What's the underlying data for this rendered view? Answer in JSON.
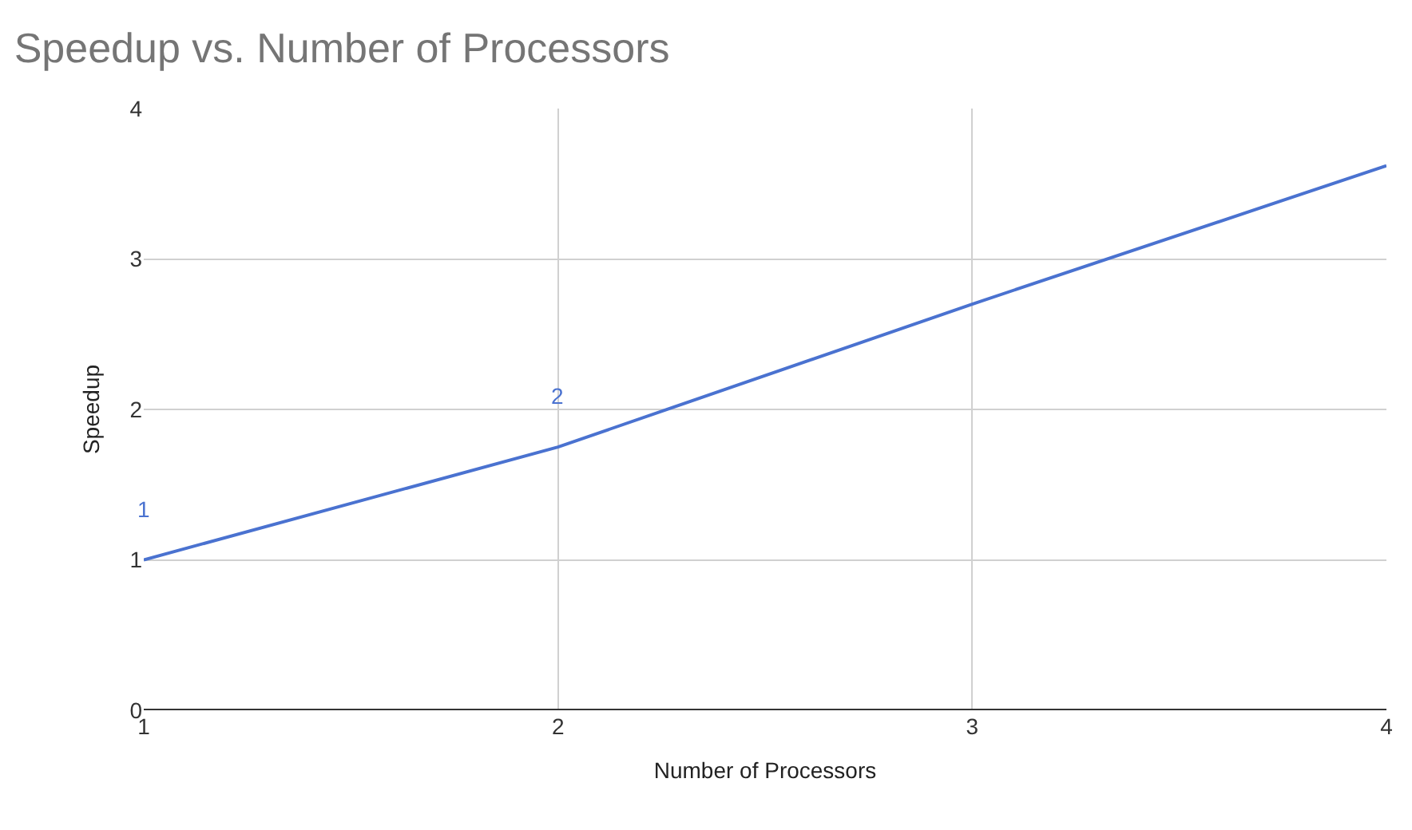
{
  "chart_data": {
    "type": "line",
    "title": "Speedup vs. Number of Processors",
    "xlabel": "Number of Processors",
    "ylabel": "Speedup",
    "x": [
      1,
      2,
      3,
      4
    ],
    "series": [
      {
        "color": "#4a72d0",
        "values": [
          1,
          1.75,
          2.7,
          3.62
        ]
      }
    ],
    "annotations": [
      {
        "text": "1",
        "x": 1,
        "y": 1
      },
      {
        "text": "2",
        "x": 2,
        "y": 1.75
      }
    ],
    "xlim": [
      1,
      4
    ],
    "xticks": [
      1,
      2,
      3,
      4
    ],
    "ylim": [
      0,
      4
    ],
    "yticks": [
      0,
      1,
      2,
      3,
      4
    ],
    "grid": true,
    "marker": "none",
    "line_style": "solid"
  }
}
